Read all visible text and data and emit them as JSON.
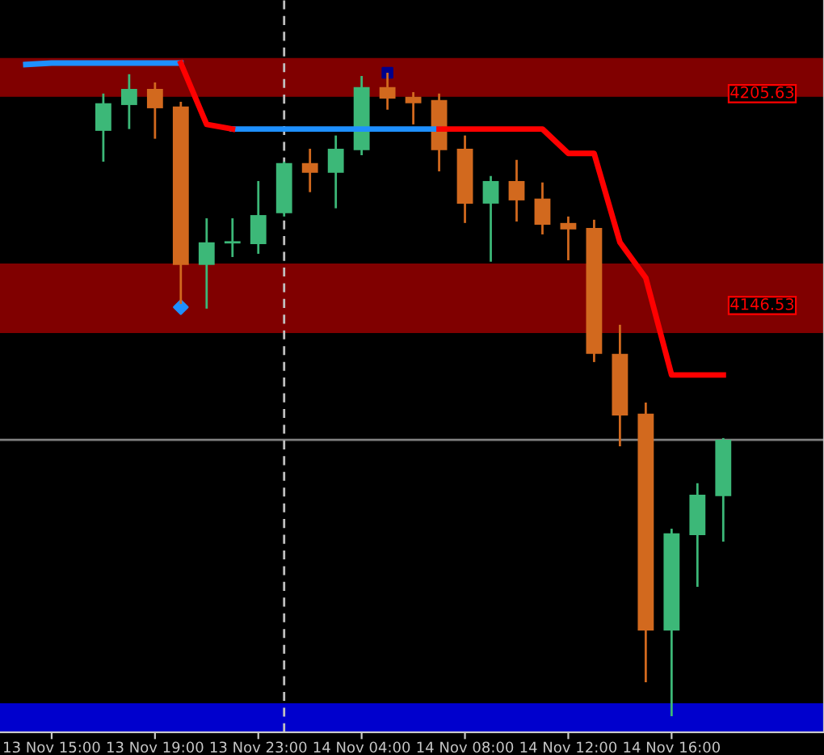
{
  "chart_data": {
    "type": "candlestick",
    "categories": [
      null,
      "13 Nov 15:00",
      null,
      null,
      null,
      "13 Nov 19:00",
      null,
      null,
      null,
      "13 Nov 23:00",
      null,
      null,
      null,
      "14 Nov 04:00",
      null,
      null,
      null,
      "14 Nov 08:00",
      null,
      null,
      null,
      "14 Nov 12:00",
      null,
      null,
      null,
      "14 Nov 16:00",
      null,
      null
    ],
    "ohlc": [
      null,
      null,
      null,
      [
        4194.8,
        4205.2,
        4186.2,
        4202.5
      ],
      [
        4202.0,
        4210.6,
        4195.3,
        4206.5
      ],
      [
        4206.5,
        4208.3,
        4192.6,
        4201.1
      ],
      [
        4201.6,
        4202.9,
        4146.5,
        4157.4
      ],
      [
        4157.4,
        4170.4,
        4145.2,
        4163.7
      ],
      [
        4163.7,
        4170.4,
        4159.6,
        4163.7
      ],
      [
        4163.2,
        4180.8,
        4160.5,
        4171.3
      ],
      [
        4171.8,
        4186.2,
        4170.9,
        4185.8
      ],
      [
        4185.8,
        4189.8,
        4177.7,
        4183.1
      ],
      [
        4183.1,
        4193.5,
        4173.2,
        4189.8
      ],
      [
        4189.4,
        4210.1,
        4188.0,
        4207.0
      ],
      [
        4207.0,
        4211.0,
        4200.7,
        4203.8
      ],
      [
        4204.3,
        4205.6,
        4196.6,
        4202.5
      ],
      [
        4203.4,
        4205.2,
        4183.5,
        4189.4
      ],
      [
        4189.8,
        4193.5,
        4169.1,
        4174.5
      ],
      [
        4174.5,
        4182.2,
        4158.3,
        4180.8
      ],
      [
        4180.8,
        4186.7,
        4169.5,
        4175.4
      ],
      [
        4175.9,
        4180.4,
        4165.9,
        4168.6
      ],
      [
        4169.1,
        4170.9,
        4158.7,
        4167.3
      ],
      [
        4167.7,
        4170.0,
        4130.3,
        4132.6
      ],
      [
        4132.6,
        4140.7,
        4106.8,
        4115.4
      ],
      [
        4115.9,
        4119.0,
        4041.0,
        4055.4
      ],
      [
        4055.4,
        4083.8,
        4031.5,
        4082.5
      ],
      [
        4082.0,
        4096.5,
        4067.6,
        4093.3
      ],
      [
        4092.9,
        4109.1,
        4080.2,
        4108.6
      ]
    ],
    "colors": [
      "#3cb878",
      "#d2691e",
      "#d2691e",
      "#3cb878",
      "#3cb878",
      "#d2691e",
      "#d2691e",
      "#3cb878",
      "#3cb878",
      "#3cb878",
      "#3cb878",
      "#d2691e",
      "#3cb878",
      "#3cb878",
      "#d2691e",
      "#d2691e",
      "#d2691e",
      "#d2691e",
      "#3cb878",
      "#d2691e",
      "#d2691e",
      "#d2691e",
      "#d2691e",
      "#d2691e",
      "#d2691e",
      "#3cb878",
      "#3cb878",
      "#3cb878"
    ],
    "series": [
      {
        "type": "line",
        "color": "#1e90ff",
        "values": [
          4213.3,
          4213.7,
          4213.7,
          4213.7,
          4213.7,
          4213.7,
          4213.7,
          null,
          4195.3,
          4195.3,
          4195.3,
          4195.3,
          4195.3,
          4195.3,
          4195.3,
          4195.3,
          4195.3,
          null,
          null,
          null,
          null,
          null,
          null,
          null,
          null,
          null,
          null,
          null
        ]
      },
      {
        "type": "line",
        "color": "#ff0000",
        "values": [
          null,
          null,
          null,
          null,
          null,
          null,
          4213.7,
          4196.6,
          4195.3,
          null,
          null,
          null,
          null,
          null,
          null,
          null,
          4195.3,
          4195.3,
          4195.3,
          4195.3,
          4195.3,
          4188.5,
          4188.5,
          4163.7,
          4153.8,
          4126.7,
          4126.7,
          4126.7
        ]
      },
      {
        "type": "scatter",
        "color": "#1e90ff",
        "marker": "diamond",
        "values": [
          null,
          null,
          null,
          null,
          null,
          null,
          4145.6,
          null,
          null,
          null,
          null,
          null,
          null,
          null,
          null,
          null,
          null,
          null,
          null,
          null,
          null,
          null,
          null,
          null,
          null,
          null,
          null,
          null
        ]
      },
      {
        "type": "scatter",
        "color": "#00008b",
        "marker": "square",
        "values": [
          null,
          null,
          null,
          null,
          null,
          null,
          null,
          null,
          null,
          null,
          null,
          null,
          null,
          null,
          4211.0,
          null,
          null,
          null,
          null,
          null,
          null,
          null,
          null,
          null,
          null,
          null,
          null,
          null
        ]
      }
    ],
    "bands": [
      {
        "axis": "y",
        "from": 4204.3,
        "to": 4215.1,
        "color": "#800000"
      },
      {
        "axis": "y",
        "from": 4138.4,
        "to": 4157.8,
        "color": "#800000"
      },
      {
        "axis": "y",
        "from": 4027.0,
        "to": 4035.1,
        "color": "#0000cd"
      }
    ],
    "ref_lines": [
      {
        "axis": "y",
        "value": 4108.6,
        "color": "#808080",
        "line_style": "solid"
      }
    ],
    "ylim": [
      4027.0,
      4231.3
    ],
    "yticks": [
      4205.63,
      4146.53
    ],
    "legend": false
  }
}
